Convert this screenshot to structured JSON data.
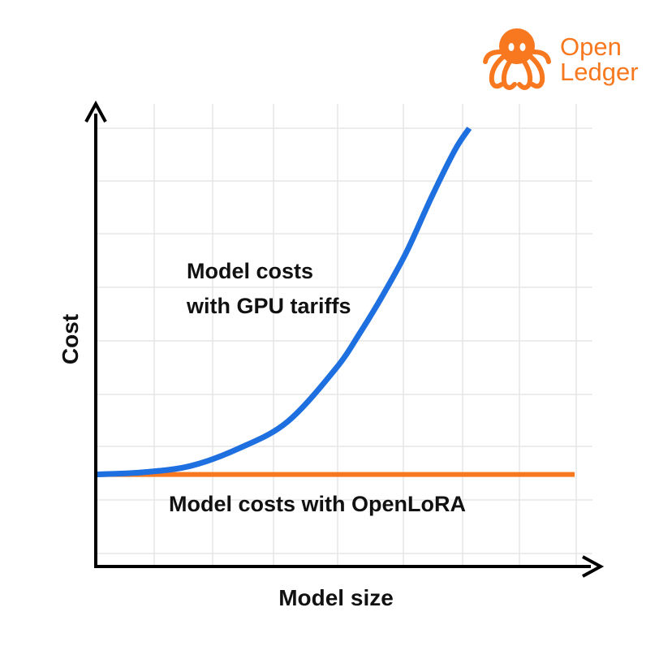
{
  "brand": {
    "line1": "Open",
    "line2": "Ledger",
    "color": "#F7781F",
    "logo_icon": "octopus-icon"
  },
  "chart_data": {
    "type": "line",
    "title": "",
    "xlabel": "Model size",
    "ylabel": "Cost",
    "xlim": [
      0,
      1
    ],
    "ylim": [
      0,
      1
    ],
    "grid": true,
    "legend": "none",
    "series": [
      {
        "name": "Model costs with GPU tariffs",
        "color": "#1E6FDF",
        "x": [
          0.0,
          0.1,
          0.2,
          0.3,
          0.4,
          0.5,
          0.55,
          0.6,
          0.65,
          0.7,
          0.75,
          0.78
        ],
        "y": [
          0.21,
          0.215,
          0.23,
          0.27,
          0.33,
          0.45,
          0.53,
          0.62,
          0.72,
          0.84,
          0.95,
          1.0
        ]
      },
      {
        "name": "Model costs with OpenLoRA",
        "color": "#F7781F",
        "x": [
          0.0,
          1.0
        ],
        "y": [
          0.21,
          0.21
        ]
      }
    ],
    "annotations": [
      {
        "lines": [
          "Model costs",
          "with GPU tariffs"
        ]
      },
      {
        "lines": [
          "Model costs with OpenLoRA"
        ]
      }
    ]
  }
}
